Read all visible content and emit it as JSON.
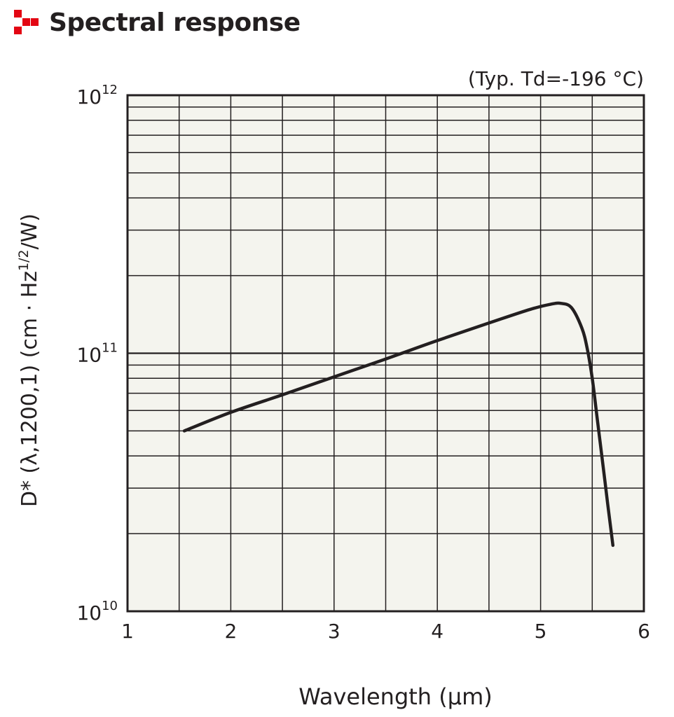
{
  "header": {
    "title": "Spectral response",
    "logo_icon": "red-squares-logo-icon",
    "logo_color": "#e30613"
  },
  "chart_data": {
    "type": "line",
    "title": "",
    "annotation": "(Typ. Td=-196 °C)",
    "xlabel": "Wavelength (μm)",
    "ylabel": "D* (λ,1200,1) (cm · Hz1/2/W)",
    "ylabel_parts": {
      "main": "D* (λ,1200,1) (cm · Hz",
      "sup": "1/2",
      "tail": "/W)"
    },
    "xlim": [
      1,
      6
    ],
    "ylim": [
      10000000000.0,
      1000000000000.0
    ],
    "yscale": "log",
    "grid": true,
    "xticks": [
      1,
      2,
      3,
      4,
      5,
      6
    ],
    "xtick_labels": [
      "1",
      "2",
      "3",
      "4",
      "5",
      "6"
    ],
    "yticks": [
      10000000000.0,
      100000000000.0,
      1000000000000.0
    ],
    "ytick_labels": [
      {
        "base": "10",
        "exp": "10"
      },
      {
        "base": "10",
        "exp": "11"
      },
      {
        "base": "10",
        "exp": "12"
      }
    ],
    "background_color": "#f4f4ee",
    "line_color": "#231f20",
    "series": [
      {
        "x": [
          1.55,
          2.0,
          2.5,
          3.0,
          3.5,
          4.0,
          4.5,
          4.9,
          5.1,
          5.2,
          5.3,
          5.4,
          5.45,
          5.5,
          5.55,
          5.6,
          5.65,
          5.7
        ],
        "y": [
          50000000000.0,
          59000000000.0,
          69000000000.0,
          81000000000.0,
          95000000000.0,
          112000000000.0,
          131000000000.0,
          148000000000.0,
          155000000000.0,
          156000000000.0,
          150000000000.0,
          125000000000.0,
          105000000000.0,
          80000000000.0,
          55000000000.0,
          38000000000.0,
          26000000000.0,
          18000000000.0
        ]
      }
    ]
  }
}
